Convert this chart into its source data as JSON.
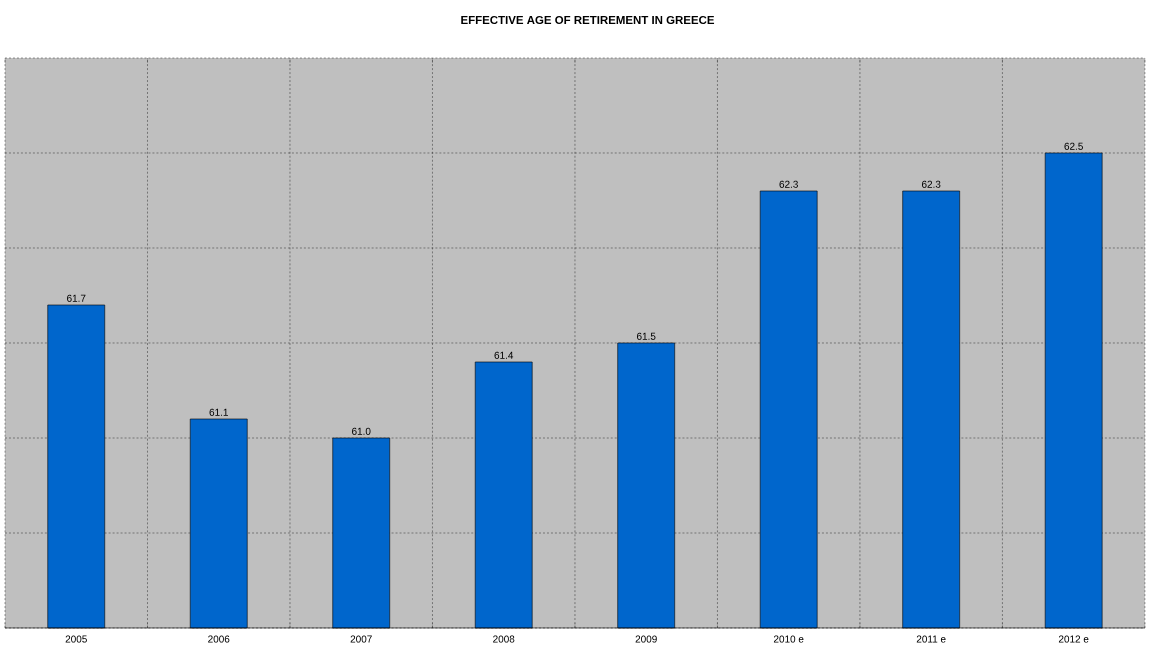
{
  "chart_data": {
    "type": "bar",
    "title": "EFFECTIVE AGE OF RETIREMENT IN GREECE",
    "categories": [
      "2005",
      "2006",
      "2007",
      "2008",
      "2009",
      "2010 e",
      "2011 e",
      "2012 e"
    ],
    "values": [
      61.7,
      61.1,
      61.0,
      61.4,
      61.5,
      62.3,
      62.3,
      62.5
    ],
    "value_labels": [
      "61.7",
      "61.1",
      "61.0",
      "61.4",
      "61.5",
      "62.3",
      "62.3",
      "62.5"
    ],
    "color": "#0066cc",
    "ylim": [
      60,
      63
    ],
    "yticks": [
      {
        "value": 60,
        "label": null
      },
      {
        "value": 60.5,
        "label": null
      },
      {
        "value": 61,
        "label": null
      },
      {
        "value": 61.5,
        "label": null
      },
      {
        "value": 62,
        "label": null
      },
      {
        "value": 62.5,
        "label": null
      },
      {
        "value": 63,
        "label": null
      }
    ],
    "tick_labels": "x",
    "grid": true
  }
}
